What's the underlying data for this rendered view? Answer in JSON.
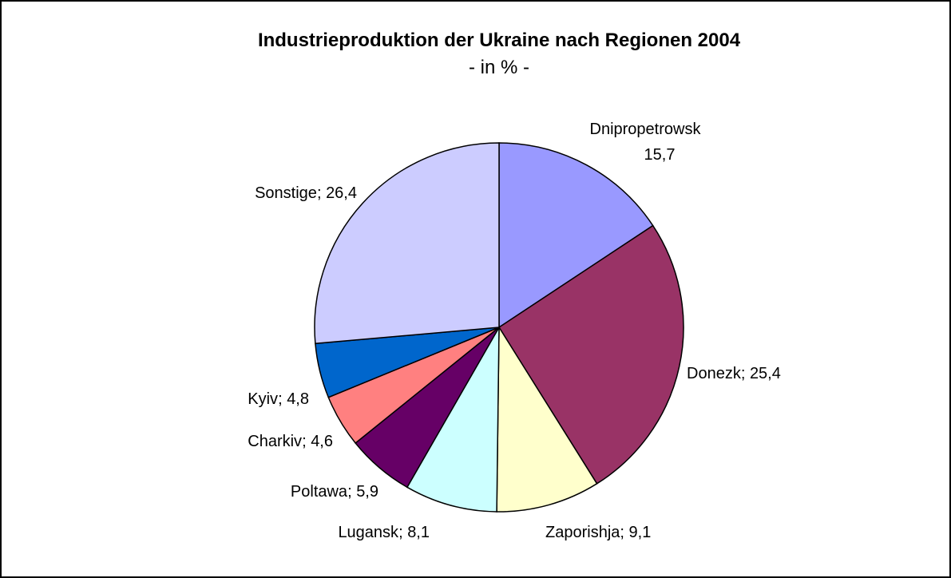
{
  "chart_data": {
    "type": "pie",
    "title": "Industrieproduktion der Ukraine nach Regionen 2004",
    "subtitle": "- in % -",
    "categories": [
      "Dnipropetrowsk",
      "Donezk",
      "Zaporishja",
      "Lugansk",
      "Poltawa",
      "Charkiv",
      "Kyiv",
      "Sonstige"
    ],
    "values": [
      15.7,
      25.4,
      9.1,
      8.1,
      5.9,
      4.6,
      4.8,
      26.4
    ],
    "value_labels": [
      "15,7",
      "25,4",
      "9,1",
      "8,1",
      "5,9",
      "4,6",
      "4,8",
      "26,4"
    ],
    "separator": "; ",
    "colors": [
      "#9999FF",
      "#993366",
      "#FFFFCC",
      "#CCFFFF",
      "#660066",
      "#FF8080",
      "#0066CC",
      "#CCCCFF"
    ]
  }
}
